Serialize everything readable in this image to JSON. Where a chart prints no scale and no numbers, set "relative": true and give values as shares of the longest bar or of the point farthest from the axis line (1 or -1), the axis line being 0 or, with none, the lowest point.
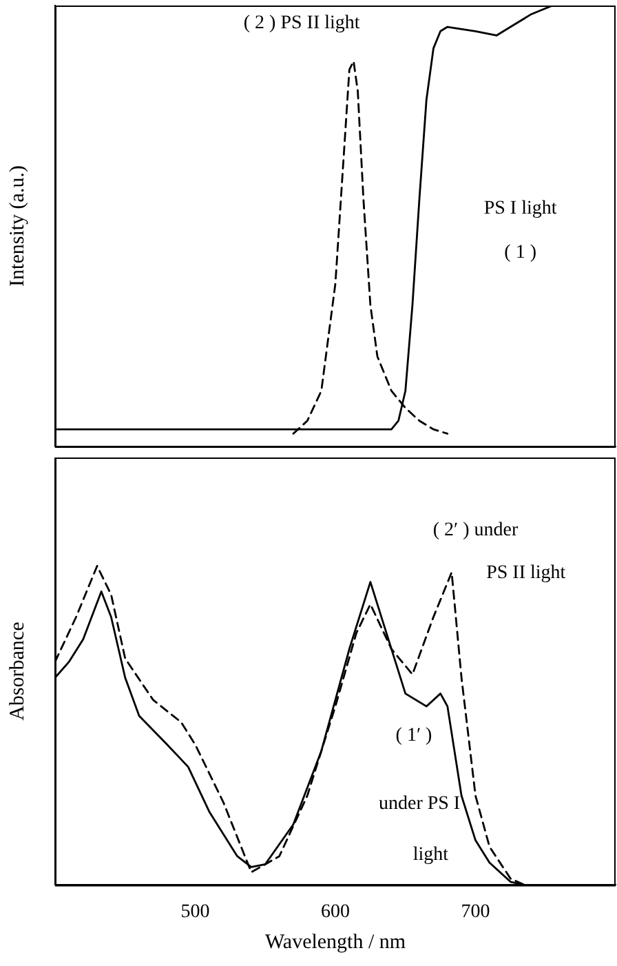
{
  "chart_data": [
    {
      "type": "line",
      "ylabel": "Intensity (a.u.)",
      "relative": true,
      "xlim": [
        400,
        800
      ],
      "tick_labels": false,
      "grid": false,
      "legend": false,
      "marker": "none",
      "series": [
        {
          "color": "#000000",
          "line_style": "solid",
          "x": [
            400,
            500,
            600,
            640,
            645,
            650,
            655,
            660,
            665,
            670,
            675,
            680,
            700,
            715,
            725,
            740,
            755
          ],
          "values": [
            0.01,
            0.01,
            0.01,
            0.01,
            0.03,
            0.1,
            0.3,
            0.55,
            0.78,
            0.9,
            0.94,
            0.95,
            0.94,
            0.93,
            0.95,
            0.98,
            1.0
          ]
        },
        {
          "color": "#000000",
          "line_style": "dashed",
          "x": [
            570,
            580,
            590,
            600,
            605,
            610,
            613,
            616,
            620,
            625,
            630,
            640,
            650,
            660,
            670,
            680
          ],
          "values": [
            0,
            0.03,
            0.1,
            0.35,
            0.6,
            0.85,
            0.87,
            0.8,
            0.55,
            0.3,
            0.18,
            0.1,
            0.06,
            0.03,
            0.01,
            0
          ]
        }
      ],
      "annotations": [
        "( 2 ) PS II light",
        "PS I light",
        "( 1 )"
      ]
    },
    {
      "type": "line",
      "ylabel": "Absorbance",
      "xlabel": "Wavelength / nm",
      "relative": true,
      "xlim": [
        400,
        800
      ],
      "xticks": [
        500,
        600,
        700
      ],
      "tick_labels": "x",
      "grid": false,
      "legend": false,
      "marker": "none",
      "series": [
        {
          "color": "#000000",
          "line_style": "solid",
          "x": [
            400,
            410,
            420,
            433,
            440,
            450,
            460,
            480,
            495,
            510,
            530,
            540,
            550,
            570,
            590,
            610,
            625,
            635,
            650,
            665,
            675,
            680,
            690,
            700,
            710,
            725,
            735
          ],
          "values": [
            0.65,
            0.7,
            0.77,
            0.92,
            0.84,
            0.65,
            0.53,
            0.44,
            0.37,
            0.23,
            0.09,
            0.056,
            0.065,
            0.19,
            0.42,
            0.74,
            0.95,
            0.81,
            0.6,
            0.56,
            0.6,
            0.56,
            0.28,
            0.14,
            0.07,
            0.01,
            0
          ]
        },
        {
          "color": "#000000",
          "line_style": "dashed",
          "x": [
            400,
            415,
            430,
            440,
            450,
            470,
            490,
            500,
            520,
            540,
            560,
            580,
            600,
            615,
            625,
            640,
            655,
            670,
            683,
            690,
            700,
            710,
            725,
            735
          ],
          "values": [
            0.7,
            0.84,
            1.0,
            0.91,
            0.71,
            0.58,
            0.51,
            0.44,
            0.26,
            0.04,
            0.09,
            0.28,
            0.56,
            0.79,
            0.88,
            0.74,
            0.66,
            0.84,
            0.98,
            0.65,
            0.28,
            0.12,
            0.02,
            0
          ]
        }
      ],
      "annotations": [
        "( 2′ ) under",
        "PS II light",
        "( 1′ )",
        "under PS I",
        "light"
      ]
    }
  ]
}
